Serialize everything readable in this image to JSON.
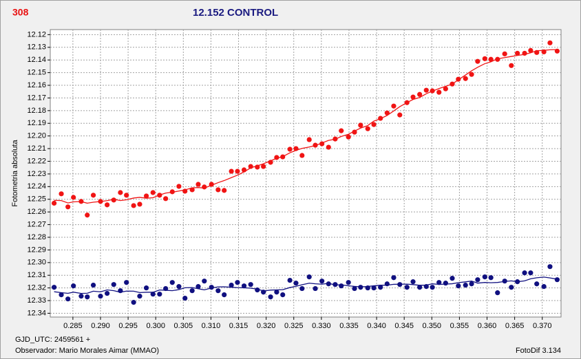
{
  "chart_data": {
    "type": "scatter",
    "title": "12.152 CONTROL",
    "star_id": "308",
    "y_label": "Fotometria absoluta",
    "x_label": "GJD_UTC: 2459561 +",
    "observer": "Observador: Mario Morales Aimar (MMAO)",
    "software": "FotoDif 3.134",
    "xlim": [
      0.2809,
      0.3734
    ],
    "ylim": [
      12.116,
      12.343
    ],
    "y_inverted": true,
    "grid": true,
    "trend_line": true,
    "xticks": [
      0.285,
      {
        "value": 0.29,
        "label": "0.290"
      },
      0.295,
      {
        "value": 0.3,
        "label": "0.300"
      },
      0.305,
      {
        "value": 0.31,
        "label": "0.310"
      },
      0.315,
      {
        "value": 0.32,
        "label": "0.320"
      },
      0.325,
      {
        "value": 0.33,
        "label": "0.330"
      },
      0.335,
      {
        "value": 0.34,
        "label": "0.340"
      },
      0.345,
      {
        "value": 0.35,
        "label": "0.350"
      },
      0.355,
      {
        "value": 0.36,
        "label": "0.360"
      },
      0.365,
      {
        "value": 0.37,
        "label": "0.370"
      }
    ],
    "yticks": [
      12.12,
      12.13,
      12.14,
      12.15,
      12.16,
      12.17,
      12.18,
      12.19,
      {
        "value": 12.2,
        "label": "12.20"
      },
      12.21,
      12.22,
      12.23,
      12.24,
      12.25,
      12.26,
      12.27,
      12.28,
      12.29,
      {
        "value": 12.3,
        "label": "12.30"
      },
      12.31,
      12.32,
      12.33,
      12.34
    ],
    "x": [
      0.2816,
      0.2829,
      0.2841,
      0.2851,
      0.2865,
      0.2876,
      0.2887,
      0.29,
      0.2912,
      0.2924,
      0.2936,
      0.2947,
      0.296,
      0.2971,
      0.2983,
      0.2995,
      0.3007,
      0.3018,
      0.303,
      0.3042,
      0.3053,
      0.3066,
      0.3077,
      0.3088,
      0.3101,
      0.3113,
      0.3124,
      0.3137,
      0.3148,
      0.316,
      0.3172,
      0.3184,
      0.3195,
      0.3208,
      0.3219,
      0.323,
      0.3243,
      0.3254,
      0.3265,
      0.3278,
      0.3289,
      0.3301,
      0.3313,
      0.3325,
      0.3336,
      0.3349,
      0.336,
      0.3371,
      0.3384,
      0.3395,
      0.3407,
      0.3419,
      0.3431,
      0.3442,
      0.3455,
      0.3466,
      0.3478,
      0.349,
      0.3501,
      0.3513,
      0.3525,
      0.3537,
      0.3548,
      0.3561,
      0.3572,
      0.3583,
      0.3596,
      0.3607,
      0.3619,
      0.3632,
      0.3644,
      0.3655,
      0.3668,
      0.3679,
      0.369,
      0.3703,
      0.3714,
      0.3727
    ],
    "series": [
      {
        "color": "#f01414",
        "values": [
          12.2531,
          12.2457,
          12.256,
          12.2485,
          12.2517,
          12.2625,
          12.2468,
          12.2517,
          12.2544,
          12.2506,
          12.2447,
          12.2468,
          12.255,
          12.2539,
          12.2474,
          12.2447,
          12.2468,
          12.2495,
          12.2441,
          12.2398,
          12.2436,
          12.2425,
          12.2382,
          12.2403,
          12.2382,
          12.2425,
          12.243,
          12.2279,
          12.2279,
          12.2268,
          12.2241,
          12.2246,
          12.2241,
          12.2208,
          12.217,
          12.2165,
          12.2105,
          12.21,
          12.2154,
          12.2029,
          12.2073,
          12.2062,
          12.2089,
          12.2024,
          12.1959,
          12.2008,
          12.197,
          12.1915,
          12.1943,
          12.191,
          12.1861,
          12.1818,
          12.1764,
          12.1834,
          12.1737,
          12.1693,
          12.1672,
          12.1639,
          12.1644,
          12.1655,
          12.1628,
          12.159,
          12.1552,
          12.1547,
          12.1514,
          12.1411,
          12.139,
          12.1395,
          12.1395,
          12.1352,
          12.1444,
          12.1347,
          12.1347,
          12.1325,
          12.1341,
          12.1336,
          12.1265,
          12.133
        ]
      },
      {
        "color": "#101080",
        "values": [
          12.3195,
          12.3254,
          12.3287,
          12.3184,
          12.3265,
          12.3271,
          12.3178,
          12.3265,
          12.3243,
          12.3173,
          12.3222,
          12.3157,
          12.3314,
          12.3265,
          12.32,
          12.3249,
          12.3249,
          12.3205,
          12.3157,
          12.3189,
          12.3281,
          12.3222,
          12.3189,
          12.3146,
          12.3195,
          12.3222,
          12.3254,
          12.3178,
          12.3157,
          12.3184,
          12.3173,
          12.3216,
          12.3233,
          12.3271,
          12.3233,
          12.3254,
          12.314,
          12.3162,
          12.3205,
          12.3113,
          12.3205,
          12.3146,
          12.3168,
          12.3173,
          12.3184,
          12.3157,
          12.3205,
          12.3195,
          12.32,
          12.32,
          12.3195,
          12.3168,
          12.3119,
          12.3173,
          12.3195,
          12.3151,
          12.3195,
          12.3189,
          12.3195,
          12.3157,
          12.3162,
          12.3124,
          12.3184,
          12.3178,
          12.3168,
          12.3135,
          12.3113,
          12.3119,
          12.3238,
          12.3146,
          12.3195,
          12.3151,
          12.3081,
          12.3081,
          12.3168,
          12.3189,
          12.3032,
          12.3135
        ]
      }
    ]
  }
}
